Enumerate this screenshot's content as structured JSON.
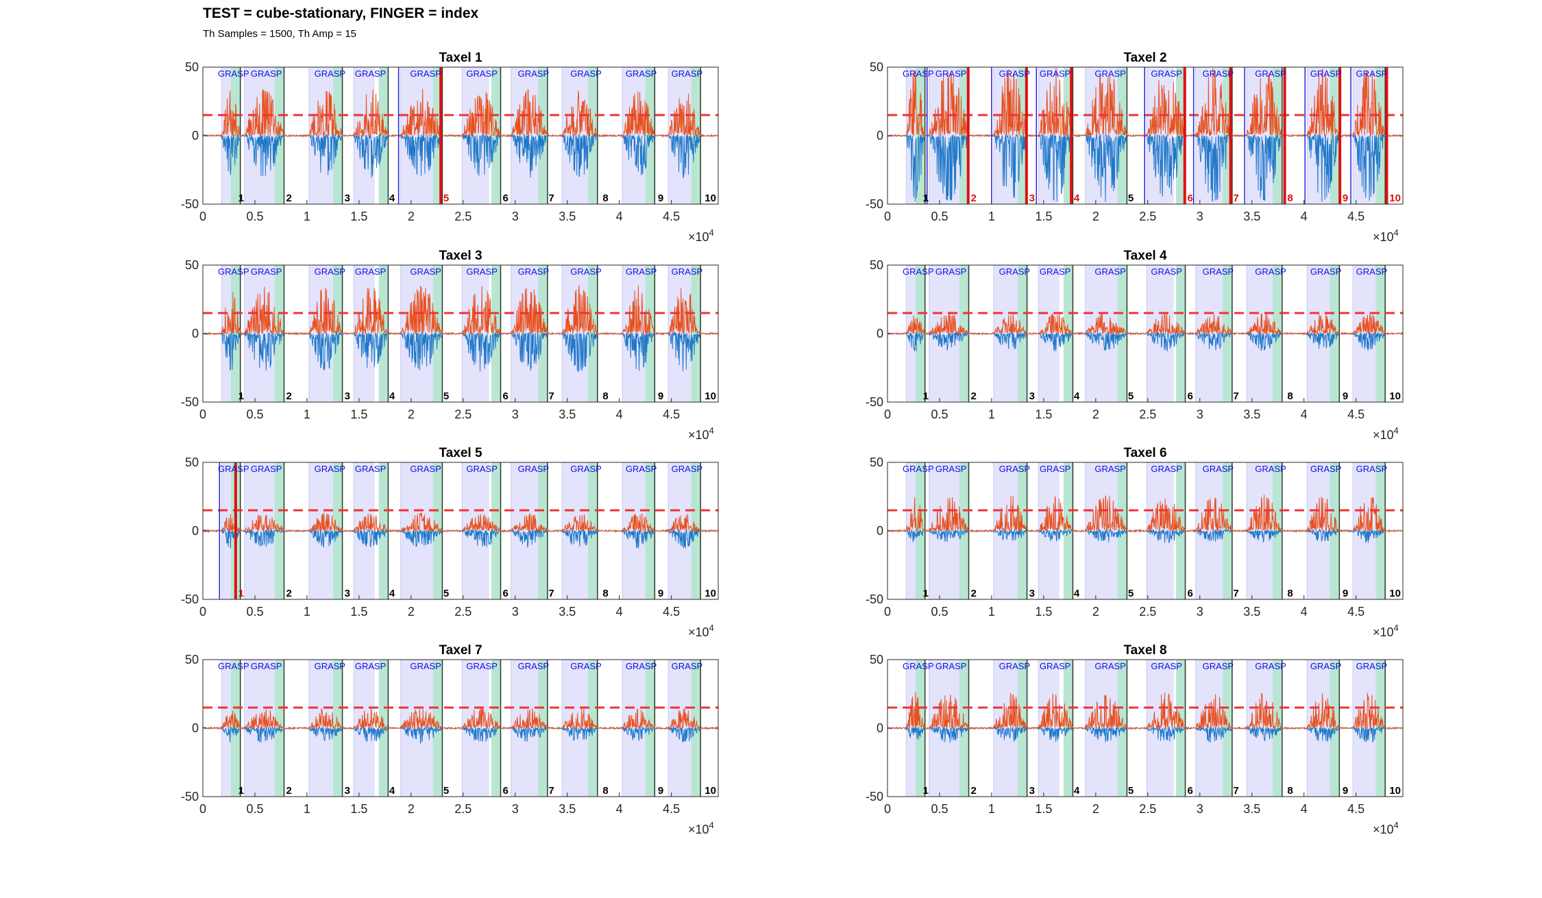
{
  "figure": {
    "title": "TEST = cube-stationary, FINGER = index",
    "subtitle": "Th Samples = 1500, Th Amp = 15"
  },
  "colors": {
    "grasp_fill": "#e3e3fc",
    "release_fill": "#b9e6d2",
    "threshold": "#ee3333",
    "series_blue": "#1f78c8",
    "series_orange": "#e8501e",
    "grasp_text": "#1010e0",
    "detect_line": "#dd1111",
    "onset_line": "#2222dd"
  },
  "chart_data": [
    {
      "type": "line",
      "title": "Taxel 1",
      "xlim": [
        0,
        49500
      ],
      "ylim": [
        -50,
        50
      ],
      "xtick_exponent": "×10^4",
      "xticks": [
        "0",
        "0.5",
        "1",
        "1.5",
        "2",
        "2.5",
        "3",
        "3.5",
        "4",
        "4.5"
      ],
      "yticks": [
        "50",
        "0",
        "-50"
      ],
      "threshold": 15,
      "grasp_label": "GRASP",
      "trial_labels": [
        "1",
        "2",
        "3",
        "4",
        "5",
        "6",
        "7",
        "8",
        "9",
        "10"
      ],
      "detected_trials": [
        "5"
      ],
      "peak_amplitude": 33,
      "series": [
        {
          "color": "blue",
          "min": -30
        },
        {
          "color": "orange",
          "max": 33
        }
      ]
    },
    {
      "type": "line",
      "title": "Taxel 2",
      "xlim": [
        0,
        49500
      ],
      "ylim": [
        -50,
        50
      ],
      "xtick_exponent": "×10^4",
      "xticks": [
        "0",
        "0.5",
        "1",
        "1.5",
        "2",
        "2.5",
        "3",
        "3.5",
        "4",
        "4.5"
      ],
      "yticks": [
        "50",
        "0",
        "-50"
      ],
      "threshold": 15,
      "grasp_label": "GRASP",
      "trial_labels": [
        "1",
        "2",
        "3",
        "4",
        "5",
        "6",
        "7",
        "8",
        "9",
        "10"
      ],
      "detected_trials": [
        "2",
        "3",
        "4",
        "6",
        "7",
        "8",
        "9",
        "10"
      ],
      "peak_amplitude": 48,
      "series": [
        {
          "color": "blue",
          "min": -48
        },
        {
          "color": "orange",
          "max": 48
        }
      ]
    },
    {
      "type": "line",
      "title": "Taxel 3",
      "xlim": [
        0,
        49500
      ],
      "ylim": [
        -50,
        50
      ],
      "xtick_exponent": "×10^4",
      "xticks": [
        "0",
        "0.5",
        "1",
        "1.5",
        "2",
        "2.5",
        "3",
        "3.5",
        "4",
        "4.5"
      ],
      "yticks": [
        "50",
        "0",
        "-50"
      ],
      "threshold": 15,
      "grasp_label": "GRASP",
      "trial_labels": [
        "1",
        "2",
        "3",
        "4",
        "5",
        "6",
        "7",
        "8",
        "9",
        "10"
      ],
      "detected_trials": [],
      "peak_amplitude": 34,
      "series": [
        {
          "color": "blue",
          "min": -27
        },
        {
          "color": "orange",
          "max": 34
        }
      ]
    },
    {
      "type": "line",
      "title": "Taxel 4",
      "xlim": [
        0,
        49500
      ],
      "ylim": [
        -50,
        50
      ],
      "xtick_exponent": "×10^4",
      "xticks": [
        "0",
        "0.5",
        "1",
        "1.5",
        "2",
        "2.5",
        "3",
        "3.5",
        "4",
        "4.5"
      ],
      "yticks": [
        "50",
        "0",
        "-50"
      ],
      "threshold": 15,
      "grasp_label": "GRASP",
      "trial_labels": [
        "1",
        "2",
        "3",
        "4",
        "5",
        "6",
        "7",
        "8",
        "9",
        "10"
      ],
      "detected_trials": [],
      "peak_amplitude": 14,
      "series": [
        {
          "color": "blue",
          "min": -12
        },
        {
          "color": "orange",
          "max": 14
        }
      ]
    },
    {
      "type": "line",
      "title": "Taxel 5",
      "xlim": [
        0,
        49500
      ],
      "ylim": [
        -50,
        50
      ],
      "xtick_exponent": "×10^4",
      "xticks": [
        "0",
        "0.5",
        "1",
        "1.5",
        "2",
        "2.5",
        "3",
        "3.5",
        "4",
        "4.5"
      ],
      "yticks": [
        "50",
        "0",
        "-50"
      ],
      "threshold": 15,
      "grasp_label": "GRASP",
      "trial_labels": [
        "1",
        "2",
        "3",
        "4",
        "5",
        "6",
        "7",
        "8",
        "9",
        "10"
      ],
      "detected_trials": [
        "1"
      ],
      "peak_amplitude": 12,
      "series": [
        {
          "color": "blue",
          "min": -12
        },
        {
          "color": "orange",
          "max": 12
        }
      ]
    },
    {
      "type": "line",
      "title": "Taxel 6",
      "xlim": [
        0,
        49500
      ],
      "ylim": [
        -50,
        50
      ],
      "xtick_exponent": "×10^4",
      "xticks": [
        "0",
        "0.5",
        "1",
        "1.5",
        "2",
        "2.5",
        "3",
        "3.5",
        "4",
        "4.5"
      ],
      "yticks": [
        "50",
        "0",
        "-50"
      ],
      "threshold": 15,
      "grasp_label": "GRASP",
      "trial_labels": [
        "1",
        "2",
        "3",
        "4",
        "5",
        "6",
        "7",
        "8",
        "9",
        "10"
      ],
      "detected_trials": [],
      "peak_amplitude": 25,
      "series": [
        {
          "color": "blue",
          "min": -8
        },
        {
          "color": "orange",
          "max": 25
        }
      ]
    },
    {
      "type": "line",
      "title": "Taxel 7",
      "xlim": [
        0,
        49500
      ],
      "ylim": [
        -50,
        50
      ],
      "xtick_exponent": "×10^4",
      "xticks": [
        "0",
        "0.5",
        "1",
        "1.5",
        "2",
        "2.5",
        "3",
        "3.5",
        "4",
        "4.5"
      ],
      "yticks": [
        "50",
        "0",
        "-50"
      ],
      "threshold": 15,
      "grasp_label": "GRASP",
      "trial_labels": [
        "1",
        "2",
        "3",
        "4",
        "5",
        "6",
        "7",
        "8",
        "9",
        "10"
      ],
      "detected_trials": [],
      "peak_amplitude": 14,
      "series": [
        {
          "color": "blue",
          "min": -10
        },
        {
          "color": "orange",
          "max": 14
        }
      ]
    },
    {
      "type": "line",
      "title": "Taxel 8",
      "xlim": [
        0,
        49500
      ],
      "ylim": [
        -50,
        50
      ],
      "xtick_exponent": "×10^4",
      "xticks": [
        "0",
        "0.5",
        "1",
        "1.5",
        "2",
        "2.5",
        "3",
        "3.5",
        "4",
        "4.5"
      ],
      "yticks": [
        "50",
        "0",
        "-50"
      ],
      "threshold": 15,
      "grasp_label": "GRASP",
      "trial_labels": [
        "1",
        "2",
        "3",
        "4",
        "5",
        "6",
        "7",
        "8",
        "9",
        "10"
      ],
      "detected_trials": [],
      "peak_amplitude": 25,
      "series": [
        {
          "color": "blue",
          "min": -10
        },
        {
          "color": "orange",
          "max": 25
        }
      ]
    }
  ]
}
